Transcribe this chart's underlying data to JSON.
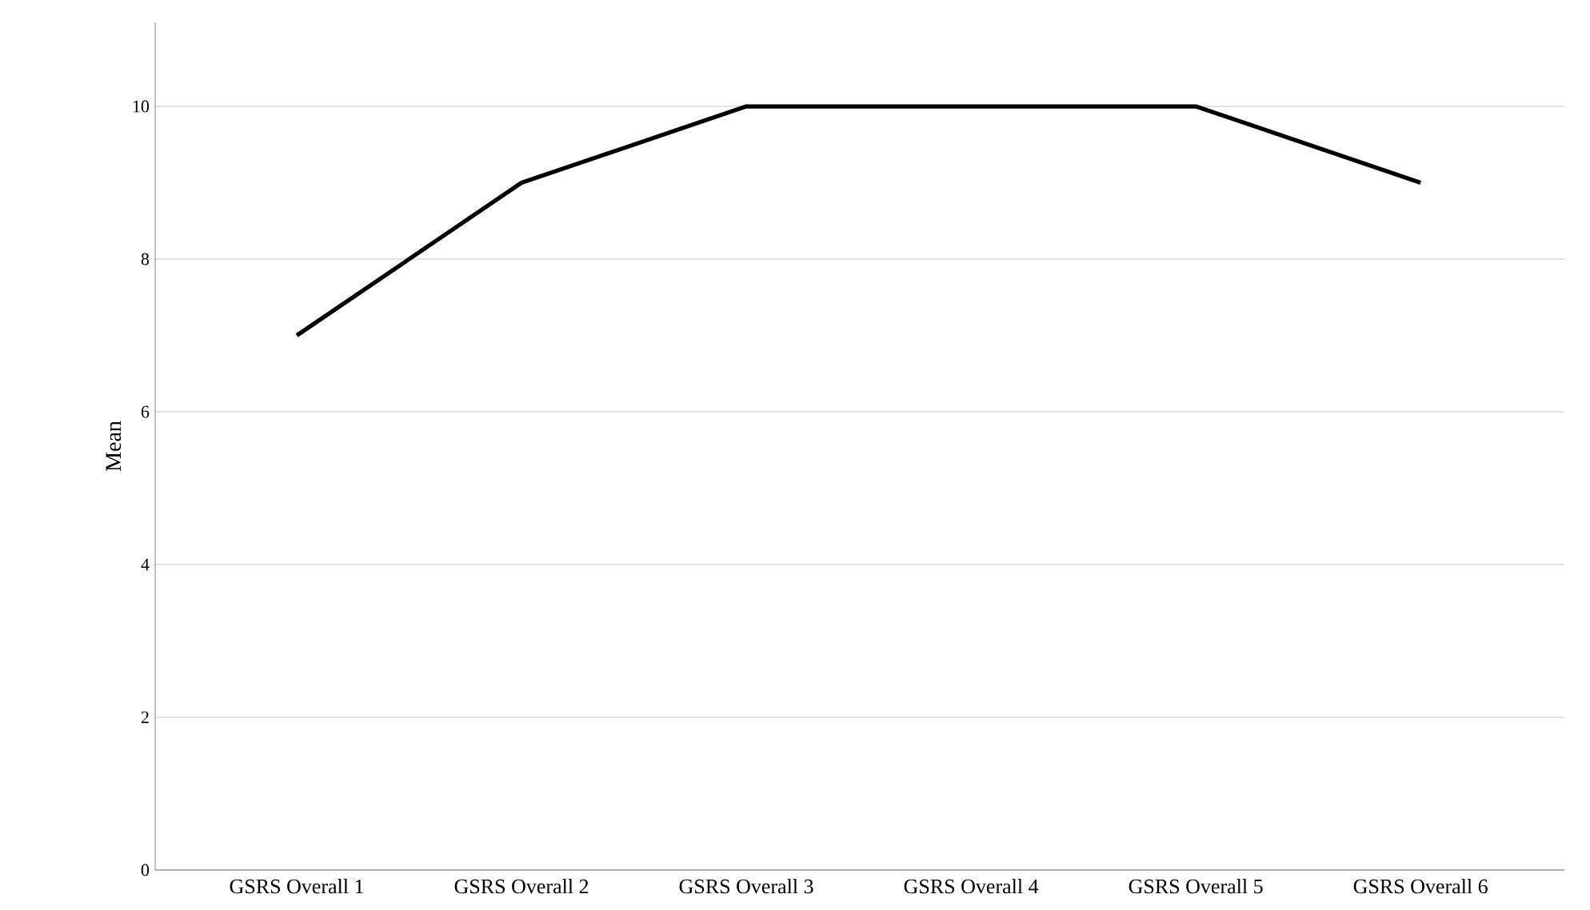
{
  "chart_data": {
    "type": "line",
    "ylabel": "Mean",
    "categories": [
      "GSRS Overall 1",
      "GSRS Overall 2",
      "GSRS Overall 3",
      "GSRS Overall 4",
      "GSRS Overall 5",
      "GSRS Overall 6"
    ],
    "values": [
      7,
      9,
      10,
      10,
      10,
      9
    ],
    "color": "#000000",
    "ylim": [
      0,
      11.1
    ],
    "yticks": [
      0,
      2,
      4,
      6,
      8,
      10
    ],
    "grid": "y",
    "marker": "none",
    "line_style": "solid"
  }
}
